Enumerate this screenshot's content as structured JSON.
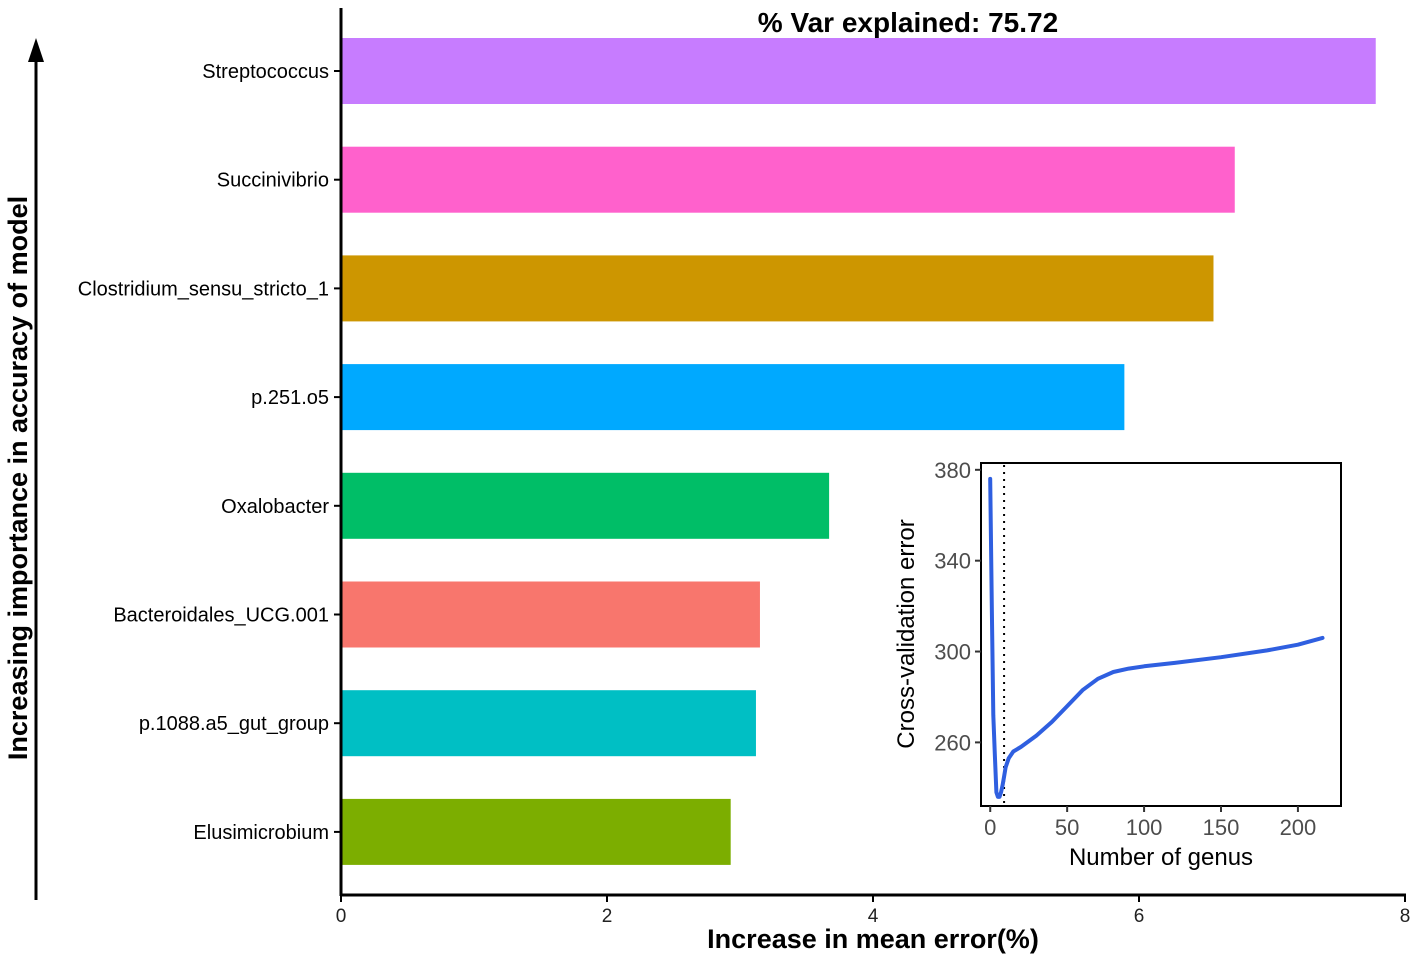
{
  "chart_data": [
    {
      "type": "bar",
      "orientation": "horizontal",
      "title": "% Var explained: 75.72",
      "xlabel": "Increase in mean error(%)",
      "ylabel": "Increasing importance in accuracy of model",
      "xlim": [
        0,
        8
      ],
      "xticks": [
        "0",
        "2",
        "4",
        "6",
        "8"
      ],
      "categories": [
        "Streptococcus",
        "Succinivibrio",
        "Clostridium_sensu_stricto_1",
        "p.251.o5",
        "Oxalobacter",
        "Bacteroidales_UCG.001",
        "p.1088.a5_gut_group",
        "Elusimicrobium"
      ],
      "values": [
        7.78,
        6.72,
        6.56,
        5.89,
        3.67,
        3.15,
        3.12,
        2.93
      ],
      "colors": [
        "#C77CFF",
        "#FF61CC",
        "#CD9600",
        "#00A9FF",
        "#00BE67",
        "#F8766D",
        "#00BFC4",
        "#7CAE00"
      ]
    },
    {
      "type": "line",
      "title": "",
      "xlabel": "Number of genus",
      "ylabel": "Cross-validation error",
      "xlim": [
        -6,
        228
      ],
      "ylim": [
        232,
        383
      ],
      "xticks": [
        "0",
        "50",
        "100",
        "150",
        "200"
      ],
      "yticks": [
        "260",
        "300",
        "340",
        "380"
      ],
      "color": "#2F5FE0",
      "vline_x": 9,
      "x": [
        0,
        1,
        2,
        3,
        4,
        5,
        6,
        7,
        8,
        9,
        10,
        12,
        15,
        20,
        30,
        40,
        50,
        60,
        70,
        80,
        90,
        100,
        120,
        150,
        180,
        200,
        216
      ],
      "y": [
        376,
        320,
        272,
        255,
        238,
        236,
        236,
        238,
        241,
        245,
        249,
        253,
        256,
        258,
        263,
        269,
        276,
        283,
        288,
        291,
        292.5,
        293.5,
        295,
        297.5,
        300.5,
        303,
        306
      ]
    }
  ]
}
